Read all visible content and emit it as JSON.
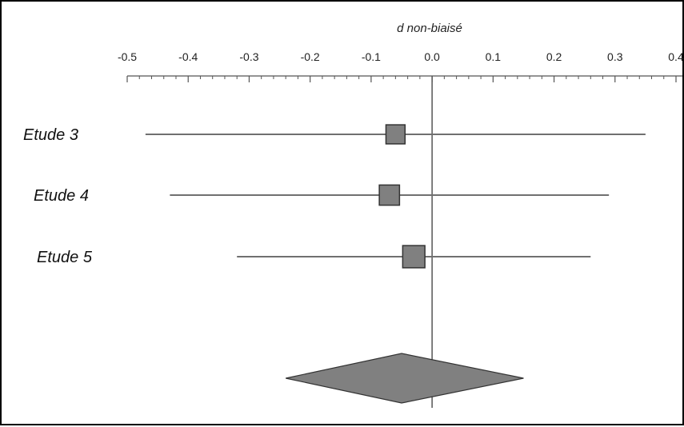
{
  "chart_data": {
    "type": "forest",
    "title": "",
    "xlabel": "d non-biaisé",
    "ylabel": "",
    "xlim": [
      -0.5,
      0.4
    ],
    "x_ticks": [
      -0.5,
      -0.4,
      -0.3,
      -0.2,
      -0.1,
      0.0,
      0.1,
      0.2,
      0.3,
      0.4
    ],
    "x_tick_labels": [
      "-0.5",
      "-0.4",
      "-0.3",
      "-0.2",
      "-0.1",
      "0.0",
      "0.1",
      "0.2",
      "0.3",
      "0.4"
    ],
    "reference_line": 0.0,
    "studies": [
      {
        "name": "Etude 3",
        "estimate": -0.06,
        "ci_low": -0.47,
        "ci_high": 0.35,
        "weight": 0.28
      },
      {
        "name": "Etude 4",
        "estimate": -0.07,
        "ci_low": -0.43,
        "ci_high": 0.29,
        "weight": 0.33
      },
      {
        "name": "Etude 5",
        "estimate": -0.03,
        "ci_low": -0.32,
        "ci_high": 0.26,
        "weight": 0.42
      }
    ],
    "summary": {
      "estimate": -0.05,
      "ci_low": -0.24,
      "ci_high": 0.15
    },
    "colors": {
      "marker": "#808080",
      "line": "#707070",
      "axis": "#555555"
    }
  }
}
